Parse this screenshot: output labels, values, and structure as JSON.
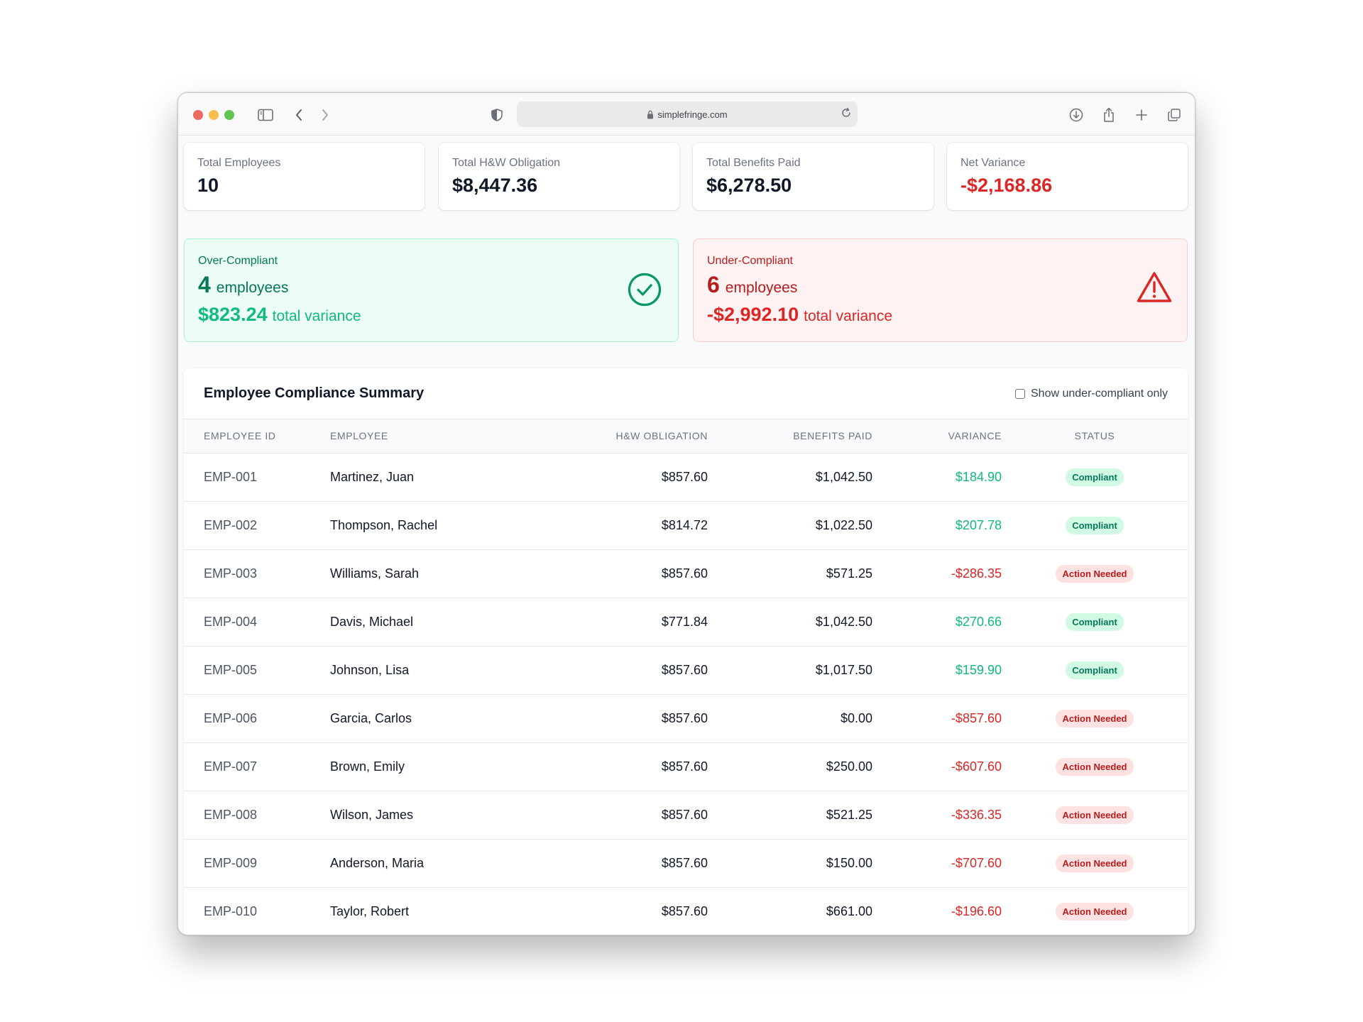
{
  "browser": {
    "url": "simplefringe.com"
  },
  "stats": [
    {
      "label": "Total Employees",
      "value": "10",
      "negative": false
    },
    {
      "label": "Total H&W Obligation",
      "value": "$8,447.36",
      "negative": false
    },
    {
      "label": "Total Benefits Paid",
      "value": "$6,278.50",
      "negative": false
    },
    {
      "label": "Net Variance",
      "value": "-$2,168.86",
      "negative": true
    }
  ],
  "over": {
    "title": "Over-Compliant",
    "count": "4",
    "count_label": "employees",
    "variance": "$823.24",
    "variance_label": "total variance",
    "icon": "check-circle-icon"
  },
  "under": {
    "title": "Under-Compliant",
    "count": "6",
    "count_label": "employees",
    "variance": "-$2,992.10",
    "variance_label": "total variance",
    "icon": "warning-triangle-icon"
  },
  "table": {
    "title": "Employee Compliance Summary",
    "filter_label": "Show under-compliant only",
    "filter_checked": false,
    "columns": [
      "Employee ID",
      "Employee",
      "H&W Obligation",
      "Benefits Paid",
      "Variance",
      "Status"
    ],
    "rows": [
      {
        "id": "EMP-001",
        "name": "Martinez, Juan",
        "obligation": "$857.60",
        "paid": "$1,042.50",
        "variance": "$184.90",
        "status": "Compliant",
        "ok": true
      },
      {
        "id": "EMP-002",
        "name": "Thompson, Rachel",
        "obligation": "$814.72",
        "paid": "$1,022.50",
        "variance": "$207.78",
        "status": "Compliant",
        "ok": true
      },
      {
        "id": "EMP-003",
        "name": "Williams, Sarah",
        "obligation": "$857.60",
        "paid": "$571.25",
        "variance": "-$286.35",
        "status": "Action Needed",
        "ok": false
      },
      {
        "id": "EMP-004",
        "name": "Davis, Michael",
        "obligation": "$771.84",
        "paid": "$1,042.50",
        "variance": "$270.66",
        "status": "Compliant",
        "ok": true
      },
      {
        "id": "EMP-005",
        "name": "Johnson, Lisa",
        "obligation": "$857.60",
        "paid": "$1,017.50",
        "variance": "$159.90",
        "status": "Compliant",
        "ok": true
      },
      {
        "id": "EMP-006",
        "name": "Garcia, Carlos",
        "obligation": "$857.60",
        "paid": "$0.00",
        "variance": "-$857.60",
        "status": "Action Needed",
        "ok": false
      },
      {
        "id": "EMP-007",
        "name": "Brown, Emily",
        "obligation": "$857.60",
        "paid": "$250.00",
        "variance": "-$607.60",
        "status": "Action Needed",
        "ok": false
      },
      {
        "id": "EMP-008",
        "name": "Wilson, James",
        "obligation": "$857.60",
        "paid": "$521.25",
        "variance": "-$336.35",
        "status": "Action Needed",
        "ok": false
      },
      {
        "id": "EMP-009",
        "name": "Anderson, Maria",
        "obligation": "$857.60",
        "paid": "$150.00",
        "variance": "-$707.60",
        "status": "Action Needed",
        "ok": false
      },
      {
        "id": "EMP-010",
        "name": "Taylor, Robert",
        "obligation": "$857.60",
        "paid": "$661.00",
        "variance": "-$196.60",
        "status": "Action Needed",
        "ok": false
      }
    ]
  },
  "colors": {
    "positive": "#10b981",
    "negative": "#dc2626",
    "over_bg": "#ecfdf5",
    "under_bg": "#fef2f2"
  }
}
